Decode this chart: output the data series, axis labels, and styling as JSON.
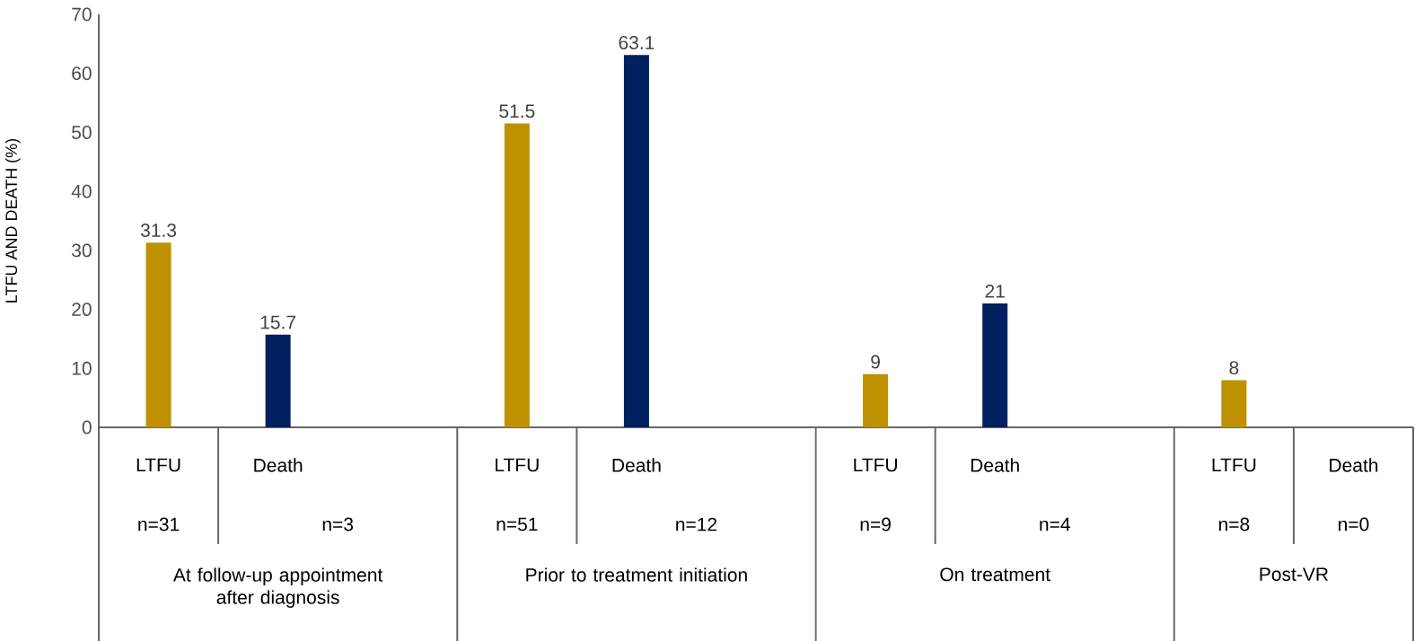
{
  "chart_data": {
    "type": "bar",
    "ylabel": "LTFU AND DEATH (%)",
    "categories": [
      "LTFU",
      "Death",
      "LTFU",
      "Death",
      "LTFU",
      "Death",
      "LTFU",
      "Death"
    ],
    "values": [
      31.3,
      15.7,
      51.5,
      63.1,
      9,
      21,
      8,
      null
    ],
    "colors": [
      "#bf9000",
      "#002060",
      "#bf9000",
      "#002060",
      "#bf9000",
      "#002060",
      "#bf9000",
      "#002060"
    ],
    "ylim": [
      0,
      70
    ],
    "yticks": [
      0,
      10,
      20,
      30,
      40,
      50,
      60,
      70
    ],
    "grid": false,
    "data_labels": true,
    "annotations": [
      "n=31",
      "n=3",
      "n=51",
      "n=12",
      "n=9",
      "n=4",
      "n=8",
      "n=0",
      "At follow-up appointment after diagnosis",
      "Prior to treatment initiation",
      "On treatment",
      "Post-VR"
    ]
  }
}
